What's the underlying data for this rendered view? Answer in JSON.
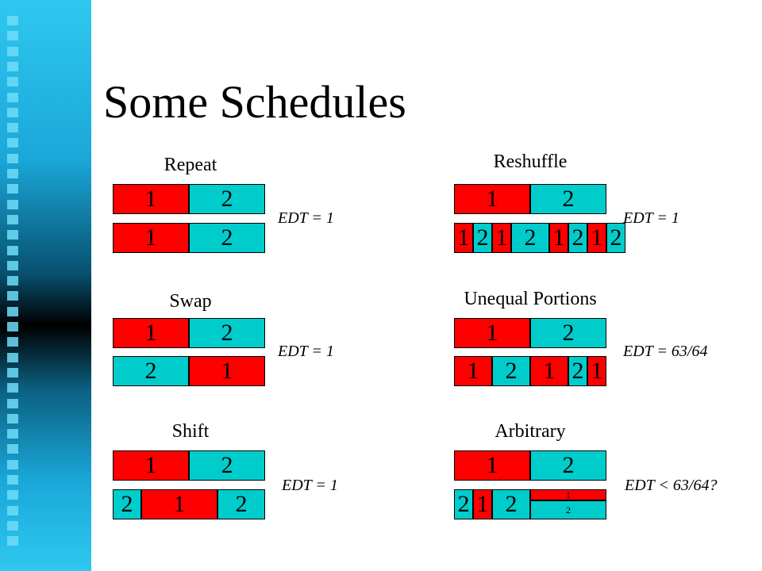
{
  "title": "Some Schedules",
  "colors": {
    "task_1": "#ff0000",
    "task_2": "#00cccc"
  },
  "schedules": [
    {
      "name": "Repeat",
      "edt": "EDT = 1",
      "rows": [
        [
          {
            "t": "1",
            "w": 1
          },
          {
            "t": "2",
            "w": 1
          }
        ],
        [
          {
            "t": "1",
            "w": 1
          },
          {
            "t": "2",
            "w": 1
          }
        ]
      ]
    },
    {
      "name": "Swap",
      "edt": "EDT = 1",
      "rows": [
        [
          {
            "t": "1",
            "w": 1
          },
          {
            "t": "2",
            "w": 1
          }
        ],
        [
          {
            "t": "2",
            "w": 1
          },
          {
            "t": "1",
            "w": 1
          }
        ]
      ]
    },
    {
      "name": "Shift",
      "edt": "EDT = 1",
      "rows": [
        [
          {
            "t": "1",
            "w": 1
          },
          {
            "t": "2",
            "w": 1
          }
        ],
        [
          {
            "t": "2",
            "w": 0.375
          },
          {
            "t": "1",
            "w": 1
          },
          {
            "t": "2",
            "w": 0.625
          }
        ]
      ]
    },
    {
      "name": "Reshuffle",
      "edt": "EDT = 1",
      "rows": [
        [
          {
            "t": "1",
            "w": 1
          },
          {
            "t": "2",
            "w": 1
          }
        ],
        [
          {
            "t": "1",
            "w": 0.25
          },
          {
            "t": "2",
            "w": 0.25
          },
          {
            "t": "1",
            "w": 0.25
          },
          {
            "t": "2",
            "w": 0.5
          },
          {
            "t": "1",
            "w": 0.25
          },
          {
            "t": "2",
            "w": 0.25
          },
          {
            "t": "1",
            "w": 0.25
          },
          {
            "t": "2",
            "w": 0.25
          }
        ]
      ]
    },
    {
      "name": "Unequal Portions",
      "edt": "EDT = 63/64",
      "rows": [
        [
          {
            "t": "1",
            "w": 1
          },
          {
            "t": "2",
            "w": 1
          }
        ],
        [
          {
            "t": "1",
            "w": 0.5
          },
          {
            "t": "2",
            "w": 0.5
          },
          {
            "t": "1",
            "w": 0.5
          },
          {
            "t": "2",
            "w": 0.25
          },
          {
            "t": "1",
            "w": 0.25
          }
        ]
      ]
    },
    {
      "name": "Arbitrary",
      "edt": "EDT < 63/64?",
      "rows": [
        [
          {
            "t": "1",
            "w": 1
          },
          {
            "t": "2",
            "w": 1
          }
        ],
        [
          {
            "t": "2",
            "w": 0.25
          },
          {
            "t": "1",
            "w": 0.25
          },
          {
            "t": "2",
            "w": 0.5
          },
          {
            "stack": [
              {
                "t": "1"
              },
              {
                "t": "2"
              }
            ],
            "w": 1
          }
        ]
      ]
    }
  ]
}
